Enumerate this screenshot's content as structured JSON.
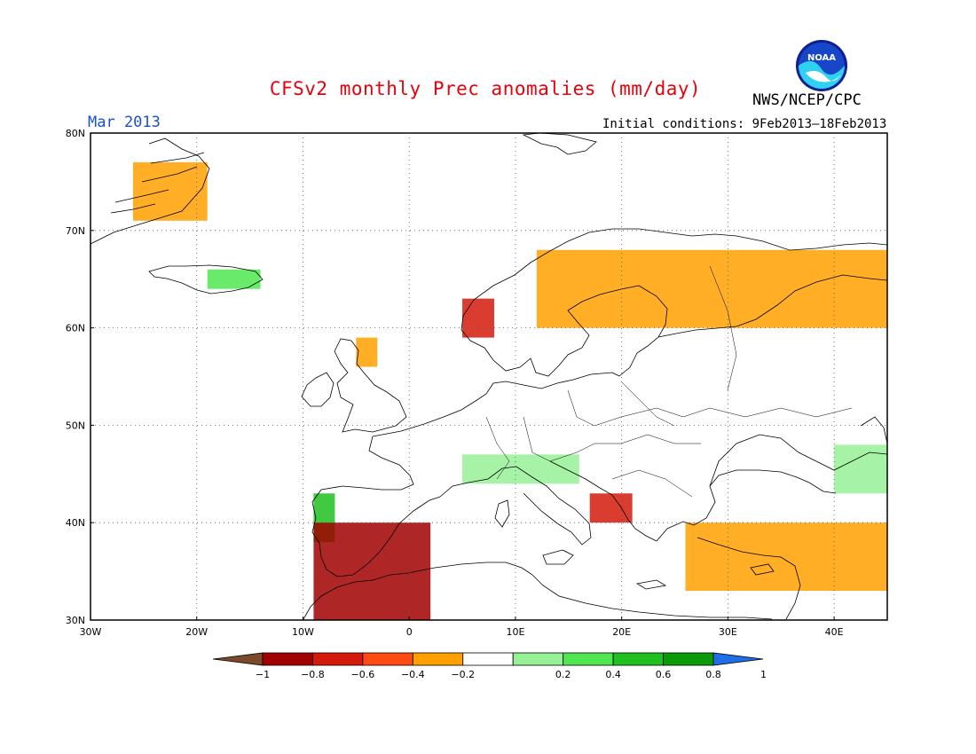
{
  "title": "CFSv2 monthly Prec anomalies (mm/day)",
  "organization": "NWS/NCEP/CPC",
  "logo_text": "NOAA",
  "valid_month": "Mar 2013",
  "initial_conditions": "Initial conditions: 9Feb2013–18Feb2013",
  "map": {
    "lon_range": [
      -30,
      45
    ],
    "lat_range": [
      30,
      80
    ],
    "lat_labels": [
      "30N",
      "40N",
      "50N",
      "60N",
      "70N",
      "80N"
    ],
    "lon_labels": [
      "30W",
      "20W",
      "10W",
      "0",
      "10E",
      "20E",
      "30E",
      "40E"
    ],
    "gridlines": "dotted"
  },
  "legend": {
    "labels": [
      "−1",
      "−0.8",
      "−0.6",
      "−0.4",
      "−0.2",
      "0.2",
      "0.4",
      "0.6",
      "0.8",
      "1"
    ],
    "colors": [
      "#7a4a2a",
      "#a10000",
      "#d41a0a",
      "#ff4a14",
      "#ffa000",
      "#ffffff",
      "#96f096",
      "#50e650",
      "#20c020",
      "#0a9a0a",
      "#1e6ee6"
    ]
  },
  "anomaly_regions": [
    {
      "name": "Greenland east",
      "lon": [
        -26,
        -19
      ],
      "lat": [
        71,
        77
      ],
      "class": "#ffa000"
    },
    {
      "name": "Iceland south",
      "lon": [
        -19,
        -14
      ],
      "lat": [
        64,
        66
      ],
      "class": "#50e650"
    },
    {
      "name": "Norway west coast",
      "lon": [
        5,
        8
      ],
      "lat": [
        59,
        63
      ],
      "class": "#d41a0a"
    },
    {
      "name": "Scandinavia north",
      "lon": [
        12,
        45
      ],
      "lat": [
        60,
        68
      ],
      "class": "#ffa000"
    },
    {
      "name": "Scotland",
      "lon": [
        -5,
        -3
      ],
      "lat": [
        56,
        59
      ],
      "class": "#ffa000"
    },
    {
      "name": "Iberia northwest",
      "lon": [
        -9,
        -7
      ],
      "lat": [
        38,
        43
      ],
      "class": "#20c020"
    },
    {
      "name": "Iberia southeast",
      "lon": [
        -9,
        2
      ],
      "lat": [
        30,
        40
      ],
      "class": "#a10000"
    },
    {
      "name": "Alps",
      "lon": [
        5,
        16
      ],
      "lat": [
        44,
        47
      ],
      "class": "#96f096"
    },
    {
      "name": "Italy south",
      "lon": [
        17,
        21
      ],
      "lat": [
        40,
        43
      ],
      "class": "#d41a0a"
    },
    {
      "name": "Turkey south",
      "lon": [
        26,
        45
      ],
      "lat": [
        33,
        40
      ],
      "class": "#ffa000"
    },
    {
      "name": "Caucasus north",
      "lon": [
        40,
        45
      ],
      "lat": [
        43,
        48
      ],
      "class": "#96f096"
    }
  ]
}
